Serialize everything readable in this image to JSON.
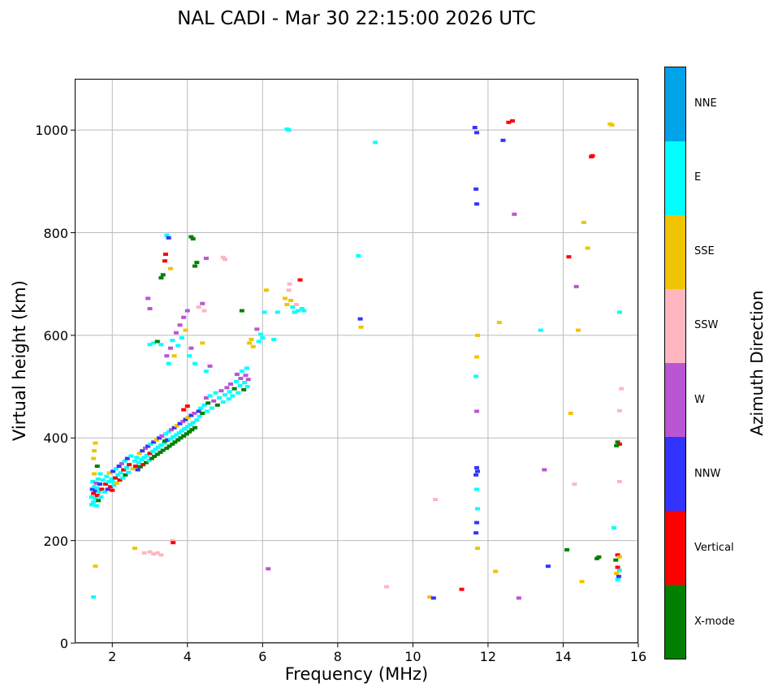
{
  "chart_data": {
    "type": "scatter",
    "title": "NAL CADI - Mar 30 22:15:00 2026 UTC",
    "xlabel": "Frequency (MHz)",
    "ylabel": "Virtual height (km)",
    "colorbar_label": "Azimuth Direction",
    "xlim": [
      1,
      16
    ],
    "ylim": [
      0,
      1100
    ],
    "xticks": [
      2,
      4,
      6,
      8,
      10,
      12,
      14,
      16
    ],
    "yticks": [
      0,
      200,
      400,
      600,
      800,
      1000
    ],
    "grid": true,
    "legend_position": "right-colorbar",
    "directions": [
      {
        "label": "NNE",
        "color": "#00A2E8"
      },
      {
        "label": "E",
        "color": "#00FFFF"
      },
      {
        "label": "SSE",
        "color": "#F0C400"
      },
      {
        "label": "SSW",
        "color": "#FFB6C1"
      },
      {
        "label": "W",
        "color": "#BA55D3"
      },
      {
        "label": "NNW",
        "color": "#3333FF"
      },
      {
        "label": "Vertical",
        "color": "#FF0000"
      },
      {
        "label": "X-mode",
        "color": "#007F00"
      }
    ],
    "points_format": [
      "frequency_mhz",
      "virtual_height_km",
      "direction_index"
    ],
    "points": [
      [
        1.45,
        270,
        1
      ],
      [
        1.45,
        285,
        1
      ],
      [
        1.47,
        300,
        5
      ],
      [
        1.48,
        315,
        1
      ],
      [
        1.5,
        275,
        1
      ],
      [
        1.5,
        292,
        6
      ],
      [
        1.52,
        305,
        1
      ],
      [
        1.52,
        330,
        2
      ],
      [
        1.55,
        282,
        1
      ],
      [
        1.55,
        297,
        5
      ],
      [
        1.57,
        312,
        4
      ],
      [
        1.58,
        268,
        1
      ],
      [
        1.6,
        288,
        6
      ],
      [
        1.6,
        302,
        1
      ],
      [
        1.62,
        320,
        1
      ],
      [
        1.63,
        278,
        7
      ],
      [
        1.65,
        295,
        1
      ],
      [
        1.67,
        310,
        5
      ],
      [
        1.68,
        330,
        1
      ],
      [
        1.7,
        285,
        1
      ],
      [
        1.72,
        300,
        6
      ],
      [
        1.75,
        318,
        1
      ],
      [
        1.5,
        360,
        2
      ],
      [
        1.52,
        375,
        2
      ],
      [
        1.55,
        390,
        2
      ],
      [
        1.6,
        345,
        7
      ],
      [
        1.8,
        295,
        1
      ],
      [
        1.82,
        310,
        6
      ],
      [
        1.85,
        325,
        1
      ],
      [
        1.88,
        300,
        5
      ],
      [
        1.9,
        315,
        1
      ],
      [
        1.92,
        332,
        2
      ],
      [
        1.95,
        305,
        6
      ],
      [
        1.98,
        320,
        1
      ],
      [
        2.0,
        298,
        6
      ],
      [
        2.0,
        315,
        1
      ],
      [
        2.02,
        335,
        5
      ],
      [
        2.05,
        308,
        1
      ],
      [
        2.08,
        322,
        6
      ],
      [
        2.1,
        340,
        1
      ],
      [
        2.12,
        312,
        2
      ],
      [
        2.15,
        328,
        1
      ],
      [
        2.18,
        345,
        5
      ],
      [
        2.2,
        318,
        6
      ],
      [
        2.22,
        332,
        1
      ],
      [
        2.25,
        350,
        4
      ],
      [
        2.28,
        322,
        1
      ],
      [
        2.3,
        338,
        6
      ],
      [
        2.33,
        355,
        1
      ],
      [
        2.35,
        328,
        7
      ],
      [
        2.38,
        342,
        1
      ],
      [
        2.4,
        360,
        5
      ],
      [
        2.43,
        333,
        1
      ],
      [
        2.45,
        348,
        6
      ],
      [
        2.5,
        365,
        1
      ],
      [
        2.55,
        340,
        2
      ],
      [
        2.6,
        355,
        1
      ],
      [
        2.62,
        345,
        6
      ],
      [
        2.65,
        362,
        1
      ],
      [
        2.68,
        338,
        5
      ],
      [
        2.7,
        352,
        1
      ],
      [
        2.72,
        370,
        2
      ],
      [
        2.75,
        344,
        7
      ],
      [
        2.78,
        358,
        1
      ],
      [
        2.8,
        375,
        5
      ],
      [
        2.82,
        348,
        6
      ],
      [
        2.85,
        362,
        1
      ],
      [
        2.88,
        380,
        4
      ],
      [
        2.9,
        352,
        7
      ],
      [
        2.92,
        366,
        1
      ],
      [
        2.95,
        384,
        5
      ],
      [
        2.98,
        356,
        1
      ],
      [
        3.0,
        370,
        6
      ],
      [
        3.02,
        388,
        1
      ],
      [
        3.05,
        360,
        7
      ],
      [
        3.08,
        374,
        1
      ],
      [
        3.1,
        392,
        5
      ],
      [
        3.12,
        364,
        7
      ],
      [
        3.15,
        378,
        1
      ],
      [
        3.18,
        396,
        2
      ],
      [
        3.2,
        368,
        7
      ],
      [
        3.22,
        382,
        1
      ],
      [
        3.25,
        400,
        5
      ],
      [
        3.28,
        372,
        7
      ],
      [
        3.3,
        386,
        1
      ],
      [
        3.32,
        404,
        4
      ],
      [
        3.35,
        376,
        7
      ],
      [
        3.38,
        390,
        1
      ],
      [
        3.4,
        394,
        7
      ],
      [
        3.42,
        408,
        1
      ],
      [
        3.45,
        380,
        7
      ],
      [
        3.47,
        396,
        5
      ],
      [
        3.5,
        412,
        1
      ],
      [
        3.52,
        384,
        7
      ],
      [
        3.55,
        398,
        1
      ],
      [
        3.57,
        416,
        4
      ],
      [
        3.6,
        388,
        7
      ],
      [
        3.62,
        402,
        1
      ],
      [
        3.65,
        420,
        5
      ],
      [
        3.67,
        392,
        7
      ],
      [
        3.7,
        406,
        1
      ],
      [
        3.72,
        424,
        2
      ],
      [
        3.75,
        396,
        7
      ],
      [
        3.78,
        410,
        1
      ],
      [
        3.8,
        428,
        5
      ],
      [
        3.82,
        400,
        7
      ],
      [
        3.85,
        414,
        1
      ],
      [
        3.88,
        432,
        4
      ],
      [
        3.9,
        404,
        7
      ],
      [
        3.92,
        418,
        1
      ],
      [
        3.95,
        436,
        5
      ],
      [
        3.98,
        408,
        7
      ],
      [
        4.0,
        422,
        1
      ],
      [
        4.02,
        440,
        2
      ],
      [
        4.05,
        412,
        7
      ],
      [
        4.08,
        426,
        1
      ],
      [
        4.1,
        444,
        5
      ],
      [
        4.12,
        416,
        7
      ],
      [
        4.15,
        430,
        1
      ],
      [
        4.18,
        448,
        4
      ],
      [
        4.2,
        420,
        7
      ],
      [
        4.25,
        435,
        1
      ],
      [
        4.3,
        452,
        5
      ],
      [
        3.9,
        455,
        6
      ],
      [
        4.0,
        462,
        6
      ],
      [
        4.32,
        442,
        1
      ],
      [
        4.35,
        458,
        1
      ],
      [
        4.4,
        448,
        7
      ],
      [
        4.45,
        464,
        1
      ],
      [
        4.5,
        478,
        4
      ],
      [
        4.52,
        452,
        1
      ],
      [
        4.55,
        468,
        7
      ],
      [
        4.6,
        482,
        1
      ],
      [
        4.65,
        458,
        1
      ],
      [
        4.7,
        472,
        4
      ],
      [
        4.75,
        488,
        1
      ],
      [
        4.8,
        464,
        7
      ],
      [
        4.85,
        478,
        1
      ],
      [
        4.9,
        492,
        4
      ],
      [
        4.95,
        470,
        1
      ],
      [
        5.0,
        484,
        1
      ],
      [
        5.05,
        498,
        4
      ],
      [
        5.1,
        476,
        1
      ],
      [
        5.12,
        490,
        1
      ],
      [
        5.15,
        505,
        4
      ],
      [
        5.2,
        482,
        1
      ],
      [
        5.25,
        496,
        7
      ],
      [
        5.3,
        510,
        1
      ],
      [
        5.32,
        524,
        4
      ],
      [
        5.35,
        488,
        1
      ],
      [
        5.4,
        502,
        1
      ],
      [
        5.42,
        516,
        4
      ],
      [
        5.45,
        530,
        1
      ],
      [
        5.5,
        494,
        7
      ],
      [
        5.52,
        508,
        1
      ],
      [
        5.55,
        522,
        4
      ],
      [
        5.58,
        536,
        1
      ],
      [
        5.6,
        500,
        1
      ],
      [
        5.62,
        514,
        4
      ],
      [
        3.45,
        560,
        4
      ],
      [
        3.5,
        545,
        1
      ],
      [
        3.55,
        575,
        4
      ],
      [
        3.6,
        590,
        1
      ],
      [
        3.65,
        560,
        2
      ],
      [
        3.7,
        605,
        4
      ],
      [
        3.75,
        580,
        1
      ],
      [
        3.8,
        620,
        4
      ],
      [
        3.85,
        595,
        1
      ],
      [
        3.9,
        635,
        4
      ],
      [
        3.95,
        610,
        2
      ],
      [
        4.0,
        648,
        4
      ],
      [
        4.05,
        560,
        1
      ],
      [
        4.1,
        575,
        4
      ],
      [
        4.2,
        545,
        1
      ],
      [
        4.3,
        655,
        3
      ],
      [
        4.4,
        662,
        4
      ],
      [
        4.45,
        648,
        3
      ],
      [
        4.5,
        530,
        1
      ],
      [
        4.6,
        540,
        4
      ],
      [
        4.4,
        585,
        2
      ],
      [
        3.0,
        582,
        1
      ],
      [
        3.1,
        585,
        1
      ],
      [
        3.2,
        588,
        7
      ],
      [
        3.3,
        582,
        1
      ],
      [
        3.0,
        652,
        4
      ],
      [
        4.5,
        750,
        4
      ],
      [
        3.3,
        712,
        7
      ],
      [
        3.35,
        718,
        7
      ],
      [
        3.4,
        745,
        6
      ],
      [
        3.42,
        758,
        6
      ],
      [
        3.45,
        795,
        1
      ],
      [
        3.5,
        790,
        5
      ],
      [
        3.55,
        730,
        2
      ],
      [
        4.1,
        792,
        7
      ],
      [
        4.15,
        788,
        7
      ],
      [
        4.2,
        735,
        7
      ],
      [
        4.25,
        742,
        7
      ],
      [
        2.95,
        672,
        4
      ],
      [
        4.95,
        752,
        3
      ],
      [
        5.0,
        748,
        3
      ],
      [
        5.65,
        585,
        2
      ],
      [
        5.7,
        592,
        2
      ],
      [
        5.75,
        578,
        2
      ],
      [
        5.9,
        588,
        1
      ],
      [
        5.95,
        602,
        1
      ],
      [
        6.0,
        595,
        1
      ],
      [
        6.05,
        645,
        1
      ],
      [
        5.85,
        612,
        4
      ],
      [
        6.1,
        688,
        2
      ],
      [
        5.45,
        648,
        7
      ],
      [
        6.3,
        592,
        1
      ],
      [
        6.4,
        645,
        1
      ],
      [
        6.6,
        672,
        2
      ],
      [
        6.65,
        660,
        2
      ],
      [
        6.7,
        688,
        3
      ],
      [
        6.72,
        700,
        3
      ],
      [
        6.75,
        668,
        2
      ],
      [
        6.8,
        655,
        1
      ],
      [
        6.85,
        645,
        1
      ],
      [
        6.9,
        660,
        3
      ],
      [
        6.95,
        648,
        1
      ],
      [
        7.0,
        708,
        6
      ],
      [
        7.05,
        652,
        1
      ],
      [
        7.1,
        648,
        1
      ],
      [
        6.65,
        1002,
        1
      ],
      [
        6.7,
        1000,
        1
      ],
      [
        8.55,
        755,
        1
      ],
      [
        8.6,
        632,
        5
      ],
      [
        8.62,
        616,
        2
      ],
      [
        9.0,
        976,
        1
      ],
      [
        9.3,
        110,
        3
      ],
      [
        10.45,
        90,
        2
      ],
      [
        10.55,
        88,
        5
      ],
      [
        10.6,
        280,
        3
      ],
      [
        11.3,
        105,
        6
      ],
      [
        11.65,
        1005,
        5
      ],
      [
        11.7,
        995,
        5
      ],
      [
        11.68,
        885,
        5
      ],
      [
        11.7,
        856,
        5
      ],
      [
        11.72,
        600,
        2
      ],
      [
        11.7,
        558,
        2
      ],
      [
        11.68,
        520,
        1
      ],
      [
        11.7,
        452,
        4
      ],
      [
        11.7,
        342,
        5
      ],
      [
        11.72,
        335,
        5
      ],
      [
        11.68,
        328,
        5
      ],
      [
        11.7,
        300,
        1
      ],
      [
        11.72,
        262,
        1
      ],
      [
        11.7,
        235,
        5
      ],
      [
        11.68,
        215,
        5
      ],
      [
        11.72,
        185,
        2
      ],
      [
        12.4,
        980,
        5
      ],
      [
        12.55,
        1015,
        6
      ],
      [
        12.65,
        1018,
        6
      ],
      [
        12.7,
        836,
        4
      ],
      [
        12.3,
        625,
        2
      ],
      [
        12.2,
        140,
        2
      ],
      [
        12.82,
        88,
        4
      ],
      [
        13.4,
        610,
        1
      ],
      [
        13.5,
        338,
        4
      ],
      [
        13.6,
        150,
        5
      ],
      [
        14.15,
        753,
        6
      ],
      [
        14.35,
        695,
        4
      ],
      [
        14.4,
        610,
        2
      ],
      [
        14.2,
        448,
        2
      ],
      [
        14.3,
        310,
        3
      ],
      [
        14.1,
        182,
        7
      ],
      [
        14.5,
        120,
        2
      ],
      [
        14.55,
        820,
        2
      ],
      [
        14.65,
        770,
        2
      ],
      [
        14.75,
        948,
        6
      ],
      [
        14.78,
        950,
        6
      ],
      [
        14.9,
        165,
        7
      ],
      [
        14.95,
        168,
        7
      ],
      [
        15.25,
        1012,
        2
      ],
      [
        15.3,
        1010,
        2
      ],
      [
        15.5,
        645,
        1
      ],
      [
        15.55,
        496,
        3
      ],
      [
        15.5,
        453,
        3
      ],
      [
        15.45,
        392,
        7
      ],
      [
        15.5,
        388,
        6
      ],
      [
        15.42,
        385,
        7
      ],
      [
        15.5,
        315,
        3
      ],
      [
        15.35,
        225,
        1
      ],
      [
        15.45,
        172,
        6
      ],
      [
        15.5,
        168,
        2
      ],
      [
        15.4,
        162,
        7
      ],
      [
        15.45,
        148,
        6
      ],
      [
        15.5,
        142,
        1
      ],
      [
        15.42,
        136,
        2
      ],
      [
        15.48,
        130,
        5
      ],
      [
        15.45,
        124,
        1
      ],
      [
        1.5,
        90,
        1
      ],
      [
        1.55,
        150,
        2
      ],
      [
        2.6,
        185,
        2
      ],
      [
        2.85,
        176,
        3
      ],
      [
        3.0,
        178,
        3
      ],
      [
        3.1,
        174,
        3
      ],
      [
        3.2,
        176,
        3
      ],
      [
        3.3,
        172,
        3
      ],
      [
        3.6,
        200,
        3
      ],
      [
        3.62,
        196,
        6
      ],
      [
        6.15,
        145,
        4
      ]
    ]
  }
}
